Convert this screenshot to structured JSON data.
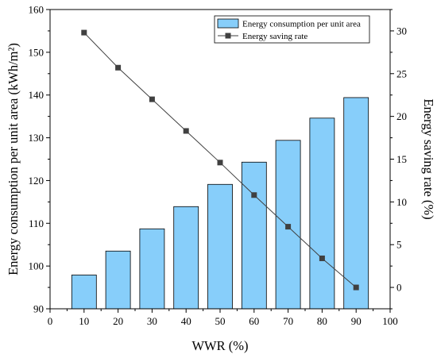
{
  "chart_data": {
    "type": "bar+line",
    "x_categories": [
      10,
      20,
      30,
      40,
      50,
      60,
      70,
      80,
      90
    ],
    "xlabel": "WWR (%)",
    "xlim": [
      0,
      100
    ],
    "xticks": [
      0,
      10,
      20,
      30,
      40,
      50,
      60,
      70,
      80,
      90,
      100
    ],
    "ylabel_left": "Energy consumption per unit area (kWh/m²)",
    "ylim_left": [
      90,
      160
    ],
    "yticks_left": [
      90,
      100,
      110,
      120,
      130,
      140,
      150,
      160
    ],
    "ylabel_right": "Energy saving rate (%)",
    "ylim_right": [
      -2.5,
      32.5
    ],
    "yticks_right": [
      0,
      5,
      10,
      15,
      20,
      25,
      30
    ],
    "grid": false,
    "legend_position": "top-right",
    "series": [
      {
        "name": "Energy consumption per unit area",
        "type": "bar",
        "axis": "left",
        "color": "#87cefa",
        "values": [
          97.9,
          103.5,
          108.7,
          113.9,
          119.1,
          124.3,
          129.4,
          134.6,
          139.4
        ]
      },
      {
        "name": "Energy saving rate",
        "type": "line",
        "axis": "right",
        "color": "#404040",
        "marker": "square",
        "values": [
          29.8,
          25.7,
          22.0,
          18.3,
          14.6,
          10.8,
          7.1,
          3.4,
          0.0
        ]
      }
    ]
  }
}
